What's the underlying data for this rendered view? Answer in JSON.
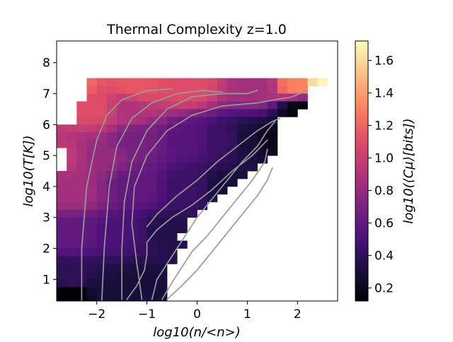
{
  "chart_data": {
    "type": "heatmap",
    "title": "Thermal Complexity z=1.0",
    "xlabel": "log10(n/<n>)",
    "ylabel": "log10(T[K])",
    "xlim": [
      -2.8,
      2.8
    ],
    "ylim": [
      0.3,
      8.7
    ],
    "xticks": [
      -2,
      -1,
      0,
      1,
      2
    ],
    "xtick_labels": [
      "−2",
      "−1",
      "0",
      "1",
      "2"
    ],
    "yticks": [
      1,
      2,
      3,
      4,
      5,
      6,
      7,
      8
    ],
    "ytick_labels": [
      "1",
      "2",
      "3",
      "4",
      "5",
      "6",
      "7",
      "8"
    ],
    "colorbar": {
      "label": "log10(⟨Cμ⟩[bits])",
      "colormap": "magma",
      "range": [
        0.12,
        1.72
      ],
      "ticks": [
        0.2,
        0.4,
        0.6,
        0.8,
        1.0,
        1.2,
        1.4,
        1.6
      ],
      "tick_labels": [
        "0.2",
        "0.4",
        "0.6",
        "0.8",
        "1.0",
        "1.2",
        "1.4",
        "1.6"
      ]
    },
    "bins": {
      "x_width": 0.2,
      "y_width": 0.25
    },
    "row_extents": [
      {
        "y": 7.25,
        "x_min": -2.2,
        "x_max": 2.6
      },
      {
        "y": 7.0,
        "x_min": -2.2,
        "x_max": 2.2
      },
      {
        "y": 6.75,
        "x_min": -2.2,
        "x_max": 2.2
      },
      {
        "y": 6.5,
        "x_min": -2.4,
        "x_max": 2.2
      },
      {
        "y": 6.25,
        "x_min": -2.4,
        "x_max": 2.0
      },
      {
        "y": 6.0,
        "x_min": -2.4,
        "x_max": 1.6
      },
      {
        "y": 5.75,
        "x_min": -2.8,
        "x_max": 1.6
      },
      {
        "y": 5.5,
        "x_min": -2.8,
        "x_max": 1.6
      },
      {
        "y": 5.25,
        "x_min": -2.8,
        "x_max": 1.6
      },
      {
        "y": 5.0,
        "x_min": -2.6,
        "x_max": 1.6
      },
      {
        "y": 4.75,
        "x_min": -2.6,
        "x_max": 1.4
      },
      {
        "y": 4.5,
        "x_min": -2.6,
        "x_max": 1.2
      },
      {
        "y": 4.25,
        "x_min": -2.8,
        "x_max": 1.0
      },
      {
        "y": 4.0,
        "x_min": -2.8,
        "x_max": 0.8
      },
      {
        "y": 3.75,
        "x_min": -2.8,
        "x_max": 0.6
      },
      {
        "y": 3.5,
        "x_min": -2.8,
        "x_max": 0.4
      },
      {
        "y": 3.25,
        "x_min": -2.8,
        "x_max": 0.2
      },
      {
        "y": 3.0,
        "x_min": -2.8,
        "x_max": 0.0
      },
      {
        "y": 2.75,
        "x_min": -2.8,
        "x_max": -0.2
      },
      {
        "y": 2.5,
        "x_min": -2.8,
        "x_max": -0.2
      },
      {
        "y": 2.25,
        "x_min": -2.8,
        "x_max": -0.4
      },
      {
        "y": 2.0,
        "x_min": -2.8,
        "x_max": -0.2
      },
      {
        "y": 1.75,
        "x_min": -2.8,
        "x_max": -0.4
      },
      {
        "y": 1.5,
        "x_min": -2.8,
        "x_max": -0.4
      },
      {
        "y": 1.25,
        "x_min": -2.8,
        "x_max": -0.6
      },
      {
        "y": 1.0,
        "x_min": -2.8,
        "x_max": -0.6
      },
      {
        "y": 0.75,
        "x_min": -2.8,
        "x_max": -0.6
      },
      {
        "y": 0.5,
        "x_min": -2.8,
        "x_max": -0.6
      },
      {
        "y": 0.25,
        "x_min": -2.8,
        "x_max": -0.6
      }
    ],
    "value_anchors": [
      {
        "x": -2.6,
        "y": 7.25,
        "value": 1.25
      },
      {
        "x": -1.2,
        "y": 7.25,
        "value": 1.15
      },
      {
        "x": -0.2,
        "y": 7.25,
        "value": 1.1
      },
      {
        "x": 1.2,
        "y": 7.25,
        "value": 0.85
      },
      {
        "x": 2.0,
        "y": 7.25,
        "value": 1.3
      },
      {
        "x": 2.5,
        "y": 7.25,
        "value": 1.7
      },
      {
        "x": -2.0,
        "y": 6.5,
        "value": 1.1
      },
      {
        "x": -1.4,
        "y": 6.5,
        "value": 0.9
      },
      {
        "x": -2.6,
        "y": 5.0,
        "value": 0.95
      },
      {
        "x": -2.0,
        "y": 5.0,
        "value": 0.8
      },
      {
        "x": -1.2,
        "y": 5.5,
        "value": 0.68
      },
      {
        "x": -0.2,
        "y": 5.5,
        "value": 0.55
      },
      {
        "x": 0.5,
        "y": 5.5,
        "value": 0.45
      },
      {
        "x": 1.0,
        "y": 5.5,
        "value": 0.3
      },
      {
        "x": 1.5,
        "y": 5.5,
        "value": 0.2
      },
      {
        "x": 2.1,
        "y": 6.5,
        "value": 0.15
      },
      {
        "x": -2.5,
        "y": 3.8,
        "value": 0.85
      },
      {
        "x": -1.2,
        "y": 4.0,
        "value": 0.6
      },
      {
        "x": -0.2,
        "y": 4.0,
        "value": 0.45
      },
      {
        "x": 0.6,
        "y": 4.0,
        "value": 0.3
      },
      {
        "x": -2.5,
        "y": 2.5,
        "value": 0.6
      },
      {
        "x": -1.5,
        "y": 2.5,
        "value": 0.5
      },
      {
        "x": -0.6,
        "y": 2.5,
        "value": 0.35
      },
      {
        "x": -2.5,
        "y": 1.0,
        "value": 0.4
      },
      {
        "x": -2.5,
        "y": 0.5,
        "value": 0.12
      },
      {
        "x": -1.8,
        "y": 0.6,
        "value": 0.3
      },
      {
        "x": -1.0,
        "y": 0.8,
        "value": 0.3
      }
    ],
    "contours": [
      [
        [
          -2.3,
          0.3
        ],
        [
          -2.3,
          2.0
        ],
        [
          -2.2,
          4.0
        ],
        [
          -2.0,
          5.5
        ],
        [
          -1.8,
          6.3
        ],
        [
          -1.5,
          6.8
        ],
        [
          -1.0,
          7.1
        ],
        [
          -0.5,
          7.15
        ]
      ],
      [
        [
          -1.9,
          0.3
        ],
        [
          -1.85,
          2.0
        ],
        [
          -1.75,
          4.0
        ],
        [
          -1.6,
          5.3
        ],
        [
          -1.3,
          6.2
        ],
        [
          -0.9,
          6.7
        ],
        [
          -0.4,
          7.0
        ],
        [
          0.1,
          7.1
        ],
        [
          0.5,
          7.05
        ]
      ],
      [
        [
          -1.5,
          0.35
        ],
        [
          -1.5,
          2.0
        ],
        [
          -1.45,
          3.5
        ],
        [
          -1.3,
          4.8
        ],
        [
          -1.0,
          5.8
        ],
        [
          -0.6,
          6.5
        ],
        [
          -0.1,
          6.9
        ],
        [
          0.5,
          7.0
        ],
        [
          1.0,
          7.0
        ],
        [
          1.2,
          7.1
        ]
      ],
      [
        [
          -1.1,
          0.35
        ],
        [
          -1.2,
          1.5
        ],
        [
          -1.3,
          2.8
        ],
        [
          -1.25,
          4.0
        ],
        [
          -1.0,
          5.0
        ],
        [
          -0.6,
          5.8
        ],
        [
          -0.1,
          6.3
        ],
        [
          0.5,
          6.6
        ],
        [
          1.2,
          6.7
        ],
        [
          1.9,
          6.9
        ],
        [
          2.2,
          7.1
        ]
      ],
      [
        [
          -0.9,
          0.35
        ],
        [
          -0.8,
          1.0
        ],
        [
          -0.6,
          1.5
        ],
        [
          -0.4,
          2.0
        ],
        [
          -0.2,
          2.5
        ],
        [
          0.0,
          3.0
        ],
        [
          0.3,
          3.6
        ],
        [
          0.6,
          4.2
        ],
        [
          0.9,
          4.8
        ],
        [
          1.2,
          5.3
        ],
        [
          1.4,
          5.8
        ],
        [
          1.55,
          6.1
        ]
      ],
      [
        [
          -0.7,
          0.35
        ],
        [
          -0.5,
          0.9
        ],
        [
          -0.3,
          1.4
        ],
        [
          -0.1,
          1.9
        ],
        [
          0.2,
          2.4
        ],
        [
          0.5,
          3.0
        ],
        [
          0.8,
          3.6
        ],
        [
          1.1,
          4.2
        ],
        [
          1.35,
          4.8
        ],
        [
          1.4,
          5.2
        ]
      ],
      [
        [
          -1.4,
          0.35
        ],
        [
          -1.2,
          0.8
        ],
        [
          -1.05,
          1.3
        ],
        [
          -1.0,
          1.8
        ],
        [
          -1.0,
          2.2
        ],
        [
          -0.8,
          2.6
        ],
        [
          -0.5,
          3.0
        ],
        [
          -0.1,
          3.4
        ],
        [
          0.3,
          3.9
        ],
        [
          0.7,
          4.5
        ],
        [
          1.1,
          5.0
        ],
        [
          1.4,
          5.5
        ]
      ],
      [
        [
          -1.0,
          2.7
        ],
        [
          -0.8,
          3.1
        ],
        [
          -0.4,
          3.7
        ],
        [
          0.0,
          4.2
        ],
        [
          0.4,
          4.8
        ],
        [
          0.8,
          5.3
        ],
        [
          1.2,
          5.8
        ],
        [
          1.5,
          6.1
        ],
        [
          1.65,
          6.2
        ]
      ],
      [
        [
          -0.6,
          0.35
        ],
        [
          -0.3,
          0.8
        ],
        [
          0.0,
          1.3
        ],
        [
          0.3,
          1.9
        ],
        [
          0.6,
          2.5
        ],
        [
          0.9,
          3.1
        ],
        [
          1.2,
          3.7
        ],
        [
          1.4,
          4.2
        ],
        [
          1.5,
          4.6
        ]
      ]
    ]
  }
}
